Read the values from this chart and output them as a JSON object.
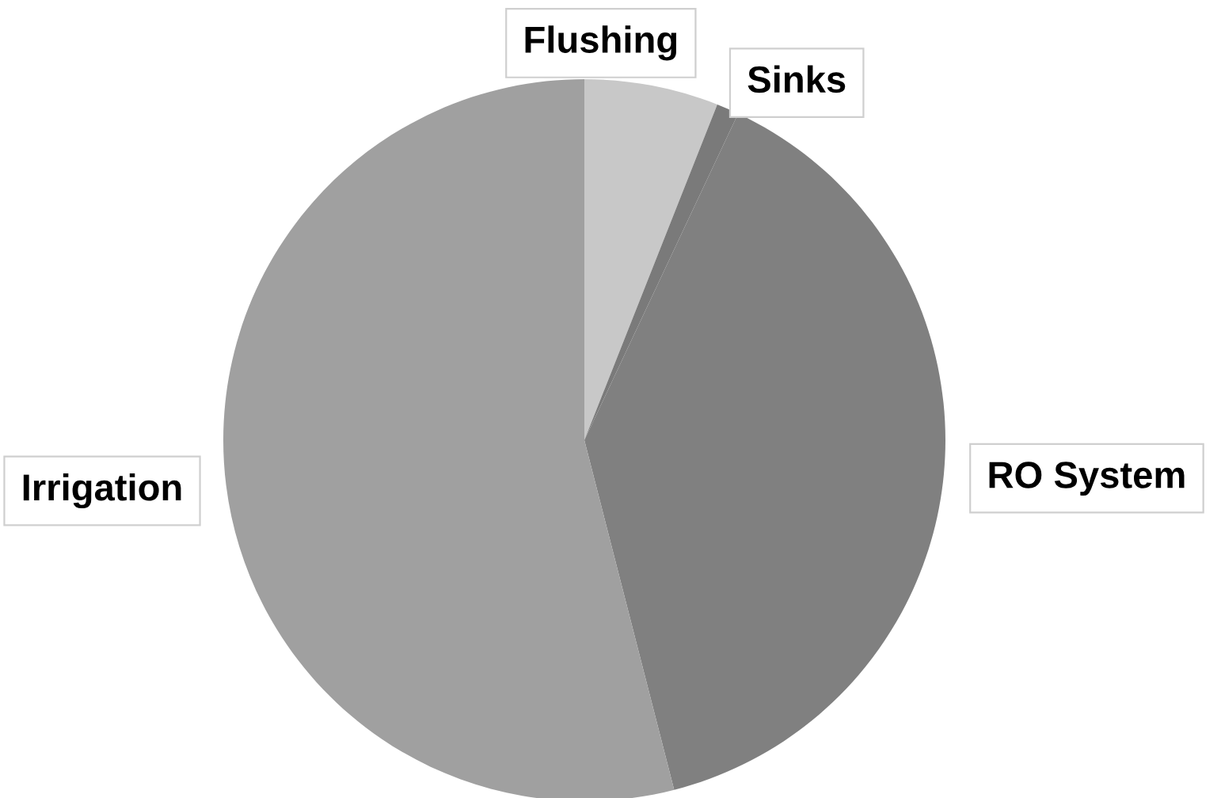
{
  "chart_data": {
    "type": "pie",
    "categories": [
      "Flushing",
      "Sinks",
      "RO System",
      "Irrigation"
    ],
    "values": [
      6,
      1,
      39,
      54
    ],
    "colors": [
      "#c8c8c8",
      "#7a7a7a",
      "#808080",
      "#a0a0a0"
    ]
  }
}
